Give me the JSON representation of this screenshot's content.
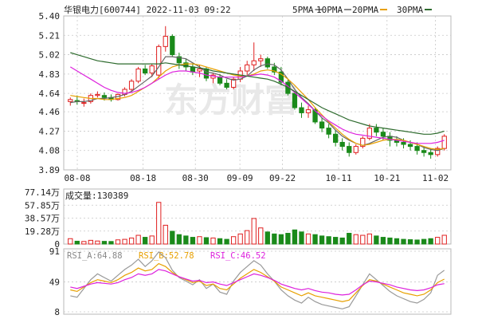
{
  "header": {
    "title": "华银电力[600744] 2022-11-03 09:22",
    "legend": [
      {
        "label": "5PMA",
        "color": "#888888"
      },
      {
        "label": "10PMA",
        "color": "#888888"
      },
      {
        "label": "20PMA",
        "color": "#e8a000"
      },
      {
        "label": "30PMA",
        "color": "#2e6b2e"
      }
    ]
  },
  "price_axis": {
    "ticks": [
      "5.40",
      "5.21",
      "5.02",
      "4.83",
      "4.64",
      "4.46",
      "4.27",
      "4.08",
      "3.89"
    ],
    "ylim": [
      3.89,
      5.4
    ]
  },
  "date_axis": {
    "labels": [
      "08-08",
      "08-18",
      "08-30",
      "09-09",
      "09-22",
      "10-11",
      "10-21",
      "11-02"
    ]
  },
  "volume": {
    "label": "成交量:130389",
    "ticks": [
      "77.14万",
      "57.85万",
      "38.57万",
      "19.28万",
      "0"
    ],
    "ylim": [
      0,
      771400
    ]
  },
  "rsi": {
    "labels": [
      {
        "text": "RSI_A:64.88",
        "color": "#888888"
      },
      {
        "text": "RSI_B:52.78",
        "color": "#e8a000"
      },
      {
        "text": "RSI_C:46.52",
        "color": "#dd22dd"
      }
    ],
    "ticks": [
      "91",
      "49",
      "8"
    ],
    "ylim": [
      8,
      91
    ]
  },
  "watermark": "东方财富",
  "colors": {
    "up": "#e02020",
    "down": "#1a8a1a",
    "ma20": "#e8a000",
    "ma30": "#2e6b2e",
    "mapink": "#dd22dd"
  },
  "chart_data": {
    "type": "candlestick",
    "x_labels": [
      "08-08",
      "08-18",
      "08-30",
      "09-09",
      "09-22",
      "10-11",
      "10-21",
      "11-02"
    ],
    "candles": [
      [
        4.56,
        4.6,
        4.52,
        4.58
      ],
      [
        4.57,
        4.62,
        4.53,
        4.56
      ],
      [
        4.55,
        4.59,
        4.51,
        4.55
      ],
      [
        4.56,
        4.64,
        4.54,
        4.62
      ],
      [
        4.62,
        4.66,
        4.6,
        4.63
      ],
      [
        4.62,
        4.65,
        4.57,
        4.6
      ],
      [
        4.6,
        4.63,
        4.56,
        4.58
      ],
      [
        4.58,
        4.64,
        4.57,
        4.63
      ],
      [
        4.63,
        4.7,
        4.61,
        4.68
      ],
      [
        4.68,
        4.78,
        4.66,
        4.76
      ],
      [
        4.76,
        4.9,
        4.74,
        4.88
      ],
      [
        4.88,
        4.92,
        4.82,
        4.84
      ],
      [
        4.84,
        4.93,
        4.8,
        4.91
      ],
      [
        4.82,
        5.12,
        4.78,
        5.1
      ],
      [
        5.1,
        5.3,
        5.05,
        5.2
      ],
      [
        5.2,
        5.22,
        5.0,
        5.02
      ],
      [
        5.0,
        5.04,
        4.88,
        4.94
      ],
      [
        4.94,
        4.98,
        4.86,
        4.9
      ],
      [
        4.9,
        4.93,
        4.82,
        4.85
      ],
      [
        4.86,
        4.92,
        4.8,
        4.88
      ],
      [
        4.88,
        4.9,
        4.76,
        4.79
      ],
      [
        4.79,
        4.84,
        4.74,
        4.82
      ],
      [
        4.8,
        4.83,
        4.72,
        4.74
      ],
      [
        4.74,
        4.78,
        4.68,
        4.7
      ],
      [
        4.7,
        4.8,
        4.68,
        4.78
      ],
      [
        4.78,
        4.9,
        4.75,
        4.86
      ],
      [
        4.86,
        4.96,
        4.82,
        4.92
      ],
      [
        4.92,
        5.14,
        4.86,
        4.96
      ],
      [
        4.96,
        5.02,
        4.9,
        4.98
      ],
      [
        4.98,
        5.0,
        4.88,
        4.9
      ],
      [
        4.9,
        4.94,
        4.82,
        4.85
      ],
      [
        4.85,
        4.9,
        4.72,
        4.75
      ],
      [
        4.75,
        4.78,
        4.62,
        4.64
      ],
      [
        4.64,
        4.66,
        4.48,
        4.5
      ],
      [
        4.5,
        4.55,
        4.4,
        4.45
      ],
      [
        4.45,
        4.52,
        4.4,
        4.48
      ],
      [
        4.48,
        4.5,
        4.34,
        4.36
      ],
      [
        4.36,
        4.4,
        4.26,
        4.3
      ],
      [
        4.3,
        4.34,
        4.2,
        4.24
      ],
      [
        4.24,
        4.28,
        4.12,
        4.16
      ],
      [
        4.16,
        4.2,
        4.08,
        4.12
      ],
      [
        4.12,
        4.16,
        4.02,
        4.06
      ],
      [
        4.06,
        4.14,
        4.04,
        4.12
      ],
      [
        4.12,
        4.22,
        4.1,
        4.2
      ],
      [
        4.2,
        4.34,
        4.18,
        4.3
      ],
      [
        4.3,
        4.34,
        4.22,
        4.26
      ],
      [
        4.26,
        4.3,
        4.18,
        4.22
      ],
      [
        4.22,
        4.26,
        4.12,
        4.18
      ],
      [
        4.18,
        4.22,
        4.12,
        4.16
      ],
      [
        4.16,
        4.2,
        4.1,
        4.14
      ],
      [
        4.14,
        4.18,
        4.08,
        4.12
      ],
      [
        4.12,
        4.16,
        4.04,
        4.08
      ],
      [
        4.08,
        4.12,
        4.02,
        4.06
      ],
      [
        4.06,
        4.1,
        4.0,
        4.04
      ],
      [
        4.04,
        4.12,
        4.02,
        4.1
      ],
      [
        4.1,
        4.24,
        4.08,
        4.22
      ]
    ],
    "volume": [
      80000,
      42000,
      38000,
      55000,
      45000,
      40000,
      38000,
      62000,
      70000,
      90000,
      130000,
      100000,
      120000,
      620000,
      280000,
      190000,
      140000,
      120000,
      100000,
      110000,
      95000,
      90000,
      80000,
      70000,
      110000,
      150000,
      200000,
      380000,
      240000,
      180000,
      150000,
      140000,
      160000,
      210000,
      180000,
      150000,
      140000,
      120000,
      110000,
      100000,
      90000,
      160000,
      140000,
      130000,
      150000,
      120000,
      100000,
      90000,
      80000,
      70000,
      65000,
      60000,
      70000,
      80000,
      100000,
      130389
    ],
    "rsi_a": [
      30,
      28,
      40,
      52,
      60,
      55,
      50,
      58,
      66,
      72,
      80,
      70,
      78,
      90,
      82,
      65,
      55,
      50,
      45,
      52,
      40,
      46,
      35,
      32,
      50,
      62,
      70,
      78,
      72,
      60,
      50,
      38,
      30,
      24,
      20,
      28,
      22,
      18,
      16,
      14,
      12,
      15,
      30,
      45,
      60,
      52,
      44,
      36,
      30,
      26,
      22,
      20,
      25,
      34,
      58,
      64.88
    ],
    "rsi_b": [
      38,
      36,
      42,
      48,
      52,
      50,
      48,
      52,
      58,
      62,
      68,
      64,
      66,
      74,
      70,
      62,
      56,
      52,
      48,
      50,
      44,
      46,
      40,
      38,
      46,
      54,
      60,
      66,
      62,
      56,
      50,
      42,
      38,
      34,
      30,
      34,
      30,
      28,
      26,
      24,
      22,
      24,
      34,
      44,
      52,
      50,
      46,
      42,
      38,
      34,
      32,
      30,
      32,
      38,
      48,
      52.78
    ],
    "rsi_c": [
      42,
      40,
      43,
      46,
      48,
      47,
      46,
      48,
      52,
      55,
      60,
      58,
      60,
      66,
      64,
      60,
      56,
      53,
      50,
      51,
      48,
      49,
      46,
      44,
      48,
      52,
      56,
      60,
      58,
      55,
      51,
      46,
      43,
      40,
      38,
      40,
      37,
      35,
      34,
      32,
      31,
      32,
      38,
      45,
      50,
      49,
      47,
      45,
      42,
      40,
      38,
      37,
      38,
      41,
      45,
      46.52
    ],
    "ma5": [
      4.55,
      4.56,
      4.56,
      4.57,
      4.59,
      4.59,
      4.6,
      4.61,
      4.63,
      4.66,
      4.71,
      4.76,
      4.81,
      4.9,
      5.0,
      5.0,
      4.99,
      4.98,
      4.94,
      4.9,
      4.85,
      4.84,
      4.82,
      4.79,
      4.77,
      4.78,
      4.81,
      4.87,
      4.91,
      4.93,
      4.92,
      4.87,
      4.78,
      4.68,
      4.6,
      4.54,
      4.47,
      4.4,
      4.35,
      4.28,
      4.22,
      4.18,
      4.15,
      4.13,
      4.15,
      4.18,
      4.21,
      4.22,
      4.21,
      4.18,
      4.16,
      4.14,
      4.11,
      4.09,
      4.08,
      4.1
    ],
    "ma20": [
      4.62,
      4.61,
      4.6,
      4.59,
      4.59,
      4.58,
      4.58,
      4.59,
      4.6,
      4.62,
      4.66,
      4.7,
      4.74,
      4.8,
      4.86,
      4.9,
      4.92,
      4.93,
      4.93,
      4.92,
      4.9,
      4.88,
      4.86,
      4.84,
      4.82,
      4.81,
      4.81,
      4.83,
      4.86,
      4.87,
      4.86,
      4.83,
      4.78,
      4.72,
      4.65,
      4.58,
      4.5,
      4.43,
      4.36,
      4.3,
      4.24,
      4.19,
      4.15,
      4.13,
      4.14,
      4.16,
      4.18,
      4.19,
      4.19,
      4.18,
      4.16,
      4.14,
      4.12,
      4.1,
      4.09,
      4.1
    ],
    "ma_pink": [
      4.9,
      4.86,
      4.82,
      4.78,
      4.74,
      4.7,
      4.67,
      4.65,
      4.64,
      4.65,
      4.67,
      4.7,
      4.74,
      4.78,
      4.82,
      4.85,
      4.86,
      4.86,
      4.85,
      4.84,
      4.82,
      4.81,
      4.8,
      4.8,
      4.8,
      4.8,
      4.81,
      4.82,
      4.83,
      4.82,
      4.8,
      4.76,
      4.71,
      4.65,
      4.59,
      4.53,
      4.47,
      4.42,
      4.37,
      4.33,
      4.29,
      4.26,
      4.24,
      4.23,
      4.22,
      4.21,
      4.2,
      4.19,
      4.18,
      4.17,
      4.16,
      4.15,
      4.15,
      4.15,
      4.16,
      4.18
    ],
    "ma30": [
      5.04,
      5.02,
      5.0,
      4.98,
      4.96,
      4.95,
      4.94,
      4.93,
      4.93,
      4.93,
      4.93,
      4.93,
      4.93,
      4.93,
      4.94,
      4.93,
      4.92,
      4.91,
      4.9,
      4.89,
      4.88,
      4.86,
      4.85,
      4.84,
      4.83,
      4.82,
      4.81,
      4.8,
      4.79,
      4.78,
      4.76,
      4.73,
      4.7,
      4.66,
      4.62,
      4.58,
      4.54,
      4.5,
      4.47,
      4.44,
      4.41,
      4.38,
      4.36,
      4.34,
      4.32,
      4.31,
      4.3,
      4.29,
      4.28,
      4.27,
      4.26,
      4.25,
      4.24,
      4.24,
      4.25,
      4.27
    ]
  }
}
